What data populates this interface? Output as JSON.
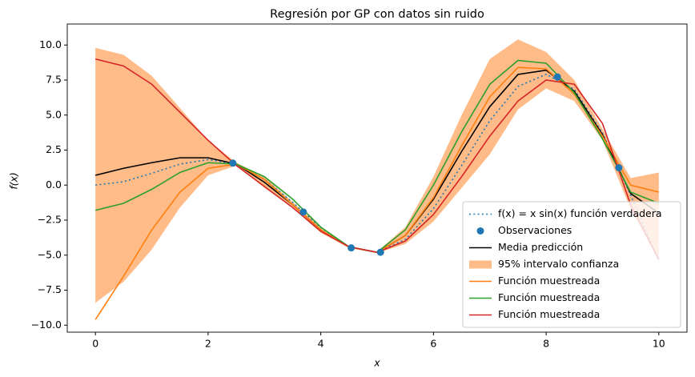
{
  "chart_data": {
    "type": "line",
    "title": "Regresión por GP con datos sin ruido",
    "x_label": "x",
    "y_label": "f(x)",
    "x": [
      0,
      0.5,
      1,
      1.5,
      2,
      2.5,
      3,
      3.5,
      4,
      4.5,
      5,
      5.5,
      6,
      6.5,
      7,
      7.5,
      8,
      8.5,
      9,
      9.5,
      10
    ],
    "series": [
      {
        "name": "f(x) = x sin(x) función verdadera",
        "color": "#1f77b4",
        "style": "dotted",
        "values": [
          0,
          0.24,
          0.84,
          1.5,
          1.82,
          1.5,
          0.42,
          -1.23,
          -3.03,
          -4.4,
          -4.79,
          -3.88,
          -1.68,
          1.4,
          4.6,
          7.04,
          7.91,
          6.84,
          3.71,
          -0.71,
          -5.44
        ]
      },
      {
        "name": "Observaciones",
        "color": "#1f77b4",
        "style": "marker",
        "x": [
          2.44,
          3.69,
          4.54,
          5.06,
          8.2,
          9.29
        ],
        "values": [
          1.57,
          -1.92,
          -4.48,
          -4.79,
          7.72,
          1.24
        ]
      },
      {
        "name": "Media predicción",
        "color": "#000000",
        "style": "solid",
        "values": [
          0.7,
          1.2,
          1.6,
          1.95,
          1.95,
          1.5,
          0.2,
          -1.4,
          -3.2,
          -4.4,
          -4.8,
          -3.6,
          -1.0,
          2.4,
          5.6,
          7.9,
          8.2,
          6.7,
          3.6,
          -0.6,
          -2.0
        ]
      },
      {
        "name": "95% intervalo confianza",
        "color": "#ffbb88",
        "style": "band",
        "upper": [
          9.8,
          9.3,
          7.8,
          5.5,
          3.2,
          1.6,
          0.6,
          -1.2,
          -3.0,
          -4.4,
          -4.75,
          -3.0,
          0.6,
          5.0,
          9.0,
          10.4,
          9.5,
          7.5,
          4.0,
          0.5,
          0.9
        ],
        "lower": [
          -8.4,
          -6.9,
          -4.6,
          -1.6,
          0.7,
          1.4,
          -0.2,
          -1.6,
          -3.4,
          -4.5,
          -4.85,
          -4.2,
          -2.6,
          -0.2,
          2.2,
          5.4,
          6.9,
          6.0,
          3.2,
          -1.7,
          -5.4
        ]
      },
      {
        "name": "Función muestreada",
        "color": "#ff7f0e",
        "style": "solid",
        "values": [
          -9.6,
          -6.5,
          -3.2,
          -0.5,
          1.2,
          1.5,
          0.4,
          -1.4,
          -3.2,
          -4.4,
          -4.8,
          -3.6,
          -0.9,
          2.8,
          6.3,
          8.4,
          8.3,
          6.5,
          3.5,
          0.0,
          -0.5
        ]
      },
      {
        "name": "Función muestreada",
        "color": "#2ca02c",
        "style": "solid",
        "values": [
          -1.8,
          -1.3,
          -0.3,
          0.9,
          1.6,
          1.5,
          0.6,
          -1.0,
          -3.0,
          -4.4,
          -4.8,
          -3.2,
          0.0,
          3.8,
          7.2,
          8.9,
          8.7,
          6.6,
          3.3,
          -0.5,
          -1.3
        ]
      },
      {
        "name": "Función muestreada",
        "color": "#d62728",
        "style": "solid",
        "values": [
          9.0,
          8.5,
          7.2,
          5.2,
          3.2,
          1.4,
          -0.1,
          -1.6,
          -3.3,
          -4.4,
          -4.8,
          -4.0,
          -2.1,
          0.6,
          3.5,
          6.0,
          7.5,
          7.2,
          4.4,
          -1.4,
          -5.3
        ]
      }
    ],
    "xlim": [
      -0.5,
      10.5
    ],
    "ylim": [
      -10.5,
      11.5
    ],
    "xticks": [
      0,
      2,
      4,
      6,
      8,
      10
    ],
    "yticks": [
      {
        "value": -10,
        "label": "−10.0"
      },
      {
        "value": -7.5,
        "label": "−7.5"
      },
      {
        "value": -5,
        "label": "−5.0"
      },
      {
        "value": -2.5,
        "label": "−2.5"
      },
      {
        "value": 0,
        "label": "0.0"
      },
      {
        "value": 2.5,
        "label": "2.5"
      },
      {
        "value": 5,
        "label": "5.0"
      },
      {
        "value": 7.5,
        "label": "7.5"
      },
      {
        "value": 10,
        "label": "10.0"
      }
    ],
    "legend": "lower right",
    "grid": false
  }
}
